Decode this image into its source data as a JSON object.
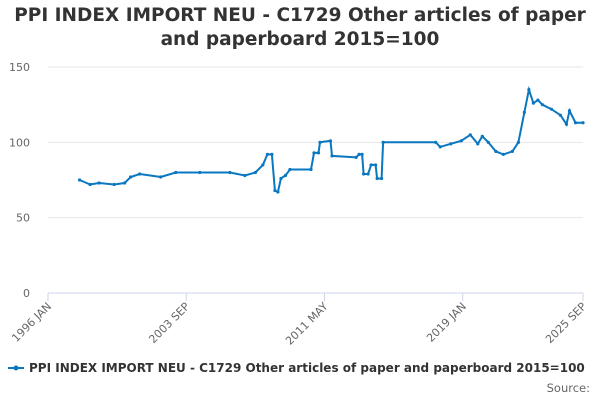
{
  "chart_data": {
    "type": "line",
    "title": "PPI INDEX IMPORT NEU - C1729 Other articles of paper and paperboard 2015=100",
    "source": "Source:",
    "x": [
      "1997 OCT",
      "1998 MAY",
      "1998 NOV",
      "1999 SEP",
      "2000 APR",
      "2000 AUG",
      "2001 FEB",
      "2002 APR",
      "2003 FEB",
      "2004 JUN",
      "2006 FEB",
      "2006 DEC",
      "2007 JUL",
      "2007 DEC",
      "2008 MAR",
      "2008 JUN",
      "2008 AUG",
      "2008 OCT",
      "2008 DEC",
      "2009 MAR",
      "2009 JUN",
      "2010 AUG",
      "2010 OCT",
      "2011 JAN",
      "2011 FEB",
      "2011 SEP",
      "2011 OCT",
      "2013 FEB",
      "2013 APR",
      "2013 JUN",
      "2013 JUL",
      "2013 OCT",
      "2013 DEC",
      "2014 MAR",
      "2014 APR",
      "2014 JUL",
      "2014 AUG",
      "2017 JUL",
      "2017 OCT",
      "2018 MAY",
      "2018 DEC",
      "2019 JUN",
      "2019 NOV",
      "2020 FEB",
      "2020 JUN",
      "2020 NOV",
      "2021 APR",
      "2021 OCT",
      "2022 FEB",
      "2022 JUN",
      "2022 SEP",
      "2022 DEC",
      "2023 MAR",
      "2023 JUN",
      "2023 DEC",
      "2024 JUN",
      "2024 OCT",
      "2024 DEC",
      "2025 APR",
      "2025 SEP"
    ],
    "series": [
      {
        "name": "PPI INDEX IMPORT NEU - C1729 Other articles of paper and paperboard 2015=100",
        "color": "#0a77c0",
        "values": [
          75,
          72,
          73,
          72,
          73,
          77,
          79,
          77,
          80,
          80,
          80,
          78,
          80,
          85,
          92,
          92,
          68,
          67,
          76,
          78,
          82,
          82,
          93,
          93,
          100,
          101,
          91,
          90,
          92,
          92,
          79,
          79,
          85,
          85,
          76,
          76,
          100,
          100,
          97,
          99,
          101,
          105,
          99,
          104,
          100,
          94,
          92,
          94,
          100,
          120,
          135,
          126,
          128,
          125,
          122,
          118,
          112,
          121,
          113,
          113
        ]
      }
    ],
    "xlim": [
      "1996 JAN",
      "2025 SEP"
    ],
    "xticks": [
      "1996 JAN",
      "2003 SEP",
      "2011 MAY",
      "2019 JAN",
      "2025 SEP"
    ],
    "ylim": [
      0,
      150
    ],
    "yticks": [
      0,
      50,
      100,
      150
    ],
    "grid": true
  }
}
